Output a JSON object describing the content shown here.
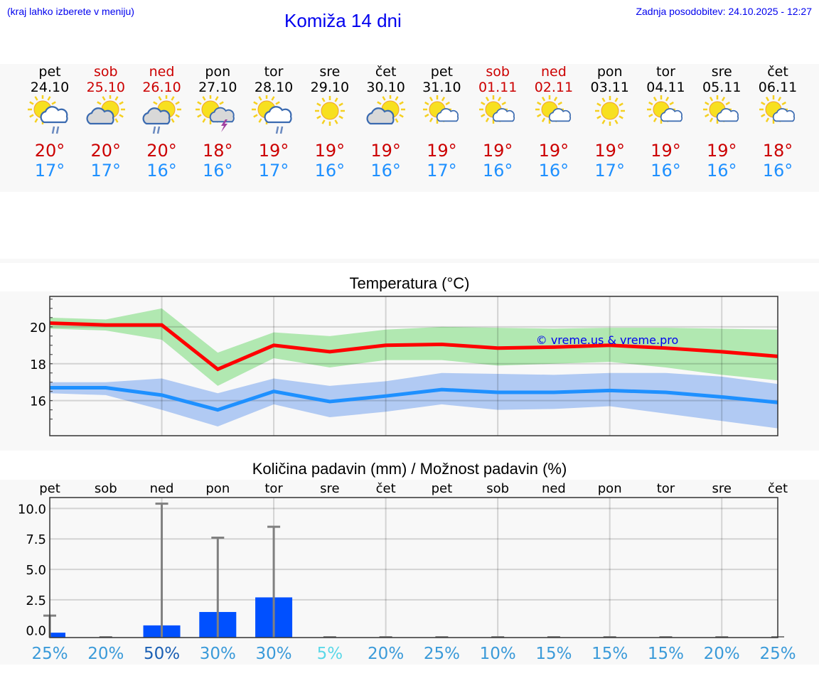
{
  "header": {
    "menu_note": "(kraj lahko izberete v meniju)",
    "title": "Komiža 14 dni",
    "updated": "Zadnja posodobitev: 24.10.2025 - 12:27"
  },
  "colors": {
    "link": "#0000ee",
    "weekend": "#cc0000",
    "high": "#cc0000",
    "low": "#1e90ff",
    "bar": "#0050ff"
  },
  "days": [
    {
      "name": "pet",
      "date": "24.10",
      "weekend": false,
      "icon": "sun-cloud-rain",
      "high": "20°",
      "low": "17°"
    },
    {
      "name": "sob",
      "date": "25.10",
      "weekend": true,
      "icon": "cloud-sun",
      "high": "20°",
      "low": "17°"
    },
    {
      "name": "ned",
      "date": "26.10",
      "weekend": true,
      "icon": "cloud-sun-rain",
      "high": "20°",
      "low": "16°"
    },
    {
      "name": "pon",
      "date": "27.10",
      "weekend": false,
      "icon": "sun-cloud-storm",
      "high": "18°",
      "low": "16°"
    },
    {
      "name": "tor",
      "date": "28.10",
      "weekend": false,
      "icon": "sun-cloud-rain",
      "high": "19°",
      "low": "17°"
    },
    {
      "name": "sre",
      "date": "29.10",
      "weekend": false,
      "icon": "sun",
      "high": "19°",
      "low": "16°"
    },
    {
      "name": "čet",
      "date": "30.10",
      "weekend": false,
      "icon": "cloud-sun",
      "high": "19°",
      "low": "16°"
    },
    {
      "name": "pet",
      "date": "31.10",
      "weekend": false,
      "icon": "sun-small-cloud",
      "high": "19°",
      "low": "17°"
    },
    {
      "name": "sob",
      "date": "01.11",
      "weekend": true,
      "icon": "sun-small-cloud",
      "high": "19°",
      "low": "16°"
    },
    {
      "name": "ned",
      "date": "02.11",
      "weekend": true,
      "icon": "sun-small-cloud",
      "high": "19°",
      "low": "16°"
    },
    {
      "name": "pon",
      "date": "03.11",
      "weekend": false,
      "icon": "sun",
      "high": "19°",
      "low": "17°"
    },
    {
      "name": "tor",
      "date": "04.11",
      "weekend": false,
      "icon": "sun-small-cloud",
      "high": "19°",
      "low": "16°"
    },
    {
      "name": "sre",
      "date": "05.11",
      "weekend": false,
      "icon": "sun-small-cloud",
      "high": "19°",
      "low": "16°"
    },
    {
      "name": "čet",
      "date": "06.11",
      "weekend": false,
      "icon": "sun-small-cloud",
      "high": "18°",
      "low": "16°"
    }
  ],
  "chart_data": [
    {
      "type": "line",
      "title": "Temperatura (°C)",
      "ylim": [
        14.1,
        21.65
      ],
      "yticks": [
        16,
        18,
        20
      ],
      "grid": true,
      "watermark": "© vreme.us & vreme.pro",
      "series": [
        {
          "name": "max",
          "color": "#ff0000",
          "values": [
            20.2,
            20.1,
            20.1,
            17.7,
            19.0,
            18.65,
            19.0,
            19.05,
            18.85,
            18.9,
            19.0,
            18.85,
            18.65,
            18.4
          ],
          "band_upper": [
            20.5,
            20.4,
            21.0,
            18.6,
            19.7,
            19.5,
            19.85,
            20.0,
            19.95,
            19.9,
            19.95,
            19.95,
            19.9,
            19.85
          ],
          "band_lower": [
            19.9,
            19.8,
            19.3,
            16.8,
            18.3,
            17.8,
            18.2,
            18.2,
            17.9,
            18.0,
            18.1,
            17.8,
            17.4,
            17.1
          ],
          "band_color": "#a8e6a8"
        },
        {
          "name": "min",
          "color": "#1e90ff",
          "values": [
            16.7,
            16.7,
            16.3,
            15.5,
            16.5,
            15.95,
            16.25,
            16.6,
            16.45,
            16.45,
            16.55,
            16.45,
            16.2,
            15.9
          ],
          "band_upper": [
            17.0,
            17.0,
            17.2,
            16.4,
            17.2,
            16.8,
            17.05,
            17.5,
            17.45,
            17.4,
            17.5,
            17.5,
            17.3,
            16.9
          ],
          "band_lower": [
            16.4,
            16.3,
            15.5,
            14.6,
            15.8,
            15.1,
            15.4,
            15.8,
            15.5,
            15.55,
            15.7,
            15.3,
            14.9,
            14.5
          ],
          "band_color": "#a9c4f2"
        }
      ]
    },
    {
      "type": "bar",
      "title": "Količina padavin (mm) / Možnost padavin (%)",
      "ylim": [
        -0.6,
        10.9
      ],
      "yticks": [
        "0.0",
        "2.5",
        "5.0",
        "7.5",
        "10.0"
      ],
      "grid": true,
      "categories": [
        "pet",
        "sob",
        "ned",
        "pon",
        "tor",
        "sre",
        "čet",
        "pet",
        "sob",
        "ned",
        "pon",
        "tor",
        "sre",
        "čet"
      ],
      "amount_mm": [
        -0.2,
        -0.6,
        0.4,
        1.5,
        2.7,
        -0.6,
        -0.6,
        -0.6,
        -0.6,
        -0.6,
        -0.6,
        -0.6,
        -0.6,
        -0.6
      ],
      "amount_max_mm": [
        1.2,
        -0.6,
        10.4,
        7.6,
        8.5,
        -0.6,
        -0.6,
        -0.6,
        -0.6,
        -0.6,
        -0.6,
        -0.6,
        -0.6,
        -0.6
      ],
      "probability": [
        "25%",
        "20%",
        "50%",
        "30%",
        "30%",
        "5%",
        "20%",
        "25%",
        "10%",
        "15%",
        "15%",
        "15%",
        "20%",
        "25%"
      ],
      "probability_colors": [
        "#3a9ad9",
        "#3a9ad9",
        "#1a5fb4",
        "#3a9ad9",
        "#3a9ad9",
        "#5ad8e8",
        "#3a9ad9",
        "#3a9ad9",
        "#3a9ad9",
        "#3a9ad9",
        "#3a9ad9",
        "#3a9ad9",
        "#3a9ad9",
        "#3a9ad9"
      ]
    }
  ]
}
